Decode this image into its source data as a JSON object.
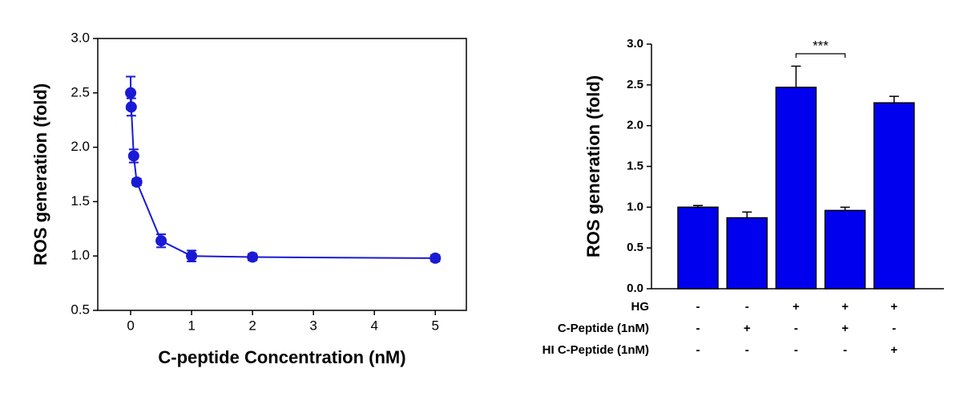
{
  "chart_data": [
    {
      "type": "line",
      "x_label": "C-peptide Concentration (nM)",
      "y_label": "ROS generation (fold)",
      "x": [
        0,
        0.01,
        0.05,
        0.1,
        0.5,
        1,
        2,
        5
      ],
      "series": [
        {
          "color": "#1a1ad6",
          "values": [
            2.5,
            2.37,
            1.92,
            1.68,
            1.14,
            1.0,
            0.99,
            0.98
          ],
          "errors": [
            0.15,
            0.08,
            0.06,
            0.03,
            0.06,
            0.05,
            0.03,
            0.03
          ]
        }
      ],
      "xlim": [
        -0.54,
        5.51
      ],
      "xticks": [
        0,
        1,
        2,
        3,
        4,
        5
      ],
      "ylim": [
        0.5,
        3.0
      ],
      "yticks": [
        0.5,
        {
          "value": 1,
          "label": "1.0"
        },
        1.5,
        {
          "value": 2,
          "label": "2.0"
        },
        2.5,
        {
          "value": 3,
          "label": "3.0"
        }
      ]
    },
    {
      "type": "bar",
      "y_label": "ROS generation (fold)",
      "values": [
        1.0,
        0.87,
        2.47,
        0.96,
        2.28
      ],
      "errors": [
        0.02,
        0.07,
        0.26,
        0.04,
        0.08
      ],
      "color": "#0000ee",
      "annotation": "***",
      "ylim": [
        0,
        3.0
      ],
      "yticks": [
        {
          "value": 0,
          "label": "0.0"
        },
        0.5,
        {
          "value": 1,
          "label": "1.0"
        },
        1.5,
        {
          "value": 2,
          "label": "2.0"
        },
        2.5,
        {
          "value": 3,
          "label": "3.0"
        }
      ],
      "table_rows": [
        {
          "label": "HG",
          "signs": [
            "-",
            "-",
            "+",
            "+",
            "+"
          ]
        },
        {
          "label": "C-Peptide (1nM)",
          "signs": [
            "-",
            "+",
            "-",
            "+",
            "-"
          ]
        },
        {
          "label": "HI C-Peptide (1nM)",
          "signs": [
            "-",
            "-",
            "-",
            "-",
            "+"
          ]
        }
      ]
    }
  ]
}
